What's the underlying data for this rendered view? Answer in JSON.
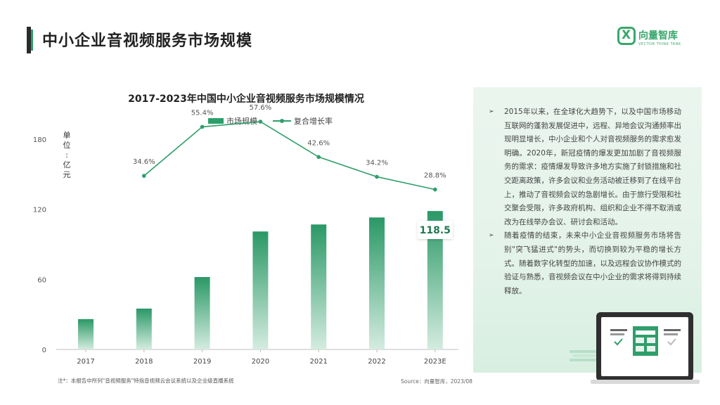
{
  "page_title": "中小企业音视频服务市场规模",
  "logo": {
    "mark": "X",
    "name": "向量智库",
    "sub": "VECTOR THINK TANK"
  },
  "legend": {
    "bar_label": "市场规模",
    "line_label": "复合增长率"
  },
  "ylabel_chars": [
    "单",
    "位",
    ":",
    "亿",
    "元"
  ],
  "chart_data": {
    "type": "bar",
    "title": "2017-2023年中国中小企业音视频服务市场规模情况",
    "categories": [
      "2017",
      "2018",
      "2019",
      "2020",
      "2021",
      "2022",
      "2023E"
    ],
    "series": [
      {
        "name": "市场规模",
        "type": "bar",
        "axis": "left",
        "values": [
          26,
          35,
          62,
          101,
          107,
          113,
          118.5
        ]
      },
      {
        "name": "复合增长率",
        "type": "line",
        "axis": "right",
        "values": [
          null,
          34.6,
          55.4,
          57.6,
          42.6,
          34.2,
          28.8
        ],
        "labels": [
          "",
          "34.6%",
          "55.4%",
          "57.6%",
          "42.6%",
          "34.2%",
          "28.8%"
        ]
      }
    ],
    "ylabel": "单位：亿元",
    "ylim": [
      0,
      180
    ],
    "yticks": [
      0,
      60,
      120,
      180
    ],
    "highlight_label": "118.5"
  },
  "note": "注*：本报告中所列\"音视频服务\"特指音视频云会议系统以及企业级直播系统",
  "source": "Source：向量智库，2023/08",
  "bullets": [
    "2015年以来，在全球化大趋势下，以及中国市场移动互联网的蓬勃发展促进中，远程、异地会议沟通频率出现明显增长，中小企业和个人对音视频服务的需求愈发明确。2020年，新冠疫情的爆发更加加剧了音视频服务的需求：疫情爆发导致许多地方实施了封锁措施和社交距离政策，许多会议和业务活动被迁移到了在线平台上，推动了音视频会议的急剧增长。由于旅行受限和社交聚会受限，许多政府机构、组织和企业不得不取消或改为在线举办会议、研讨会和活动。",
    "随着疫情的结束，未来中小企业音视频服务市场将告别\"突飞猛进式\"的势头，而切换到较为平稳的增长方式。随着数字化转型的加速，以及远程会议协作模式的验证与熟悉，音视频会议在中小企业的需求将得到持续释放。"
  ],
  "colors": {
    "accent": "#2e9e6b",
    "panel": "#e6f4ec"
  }
}
